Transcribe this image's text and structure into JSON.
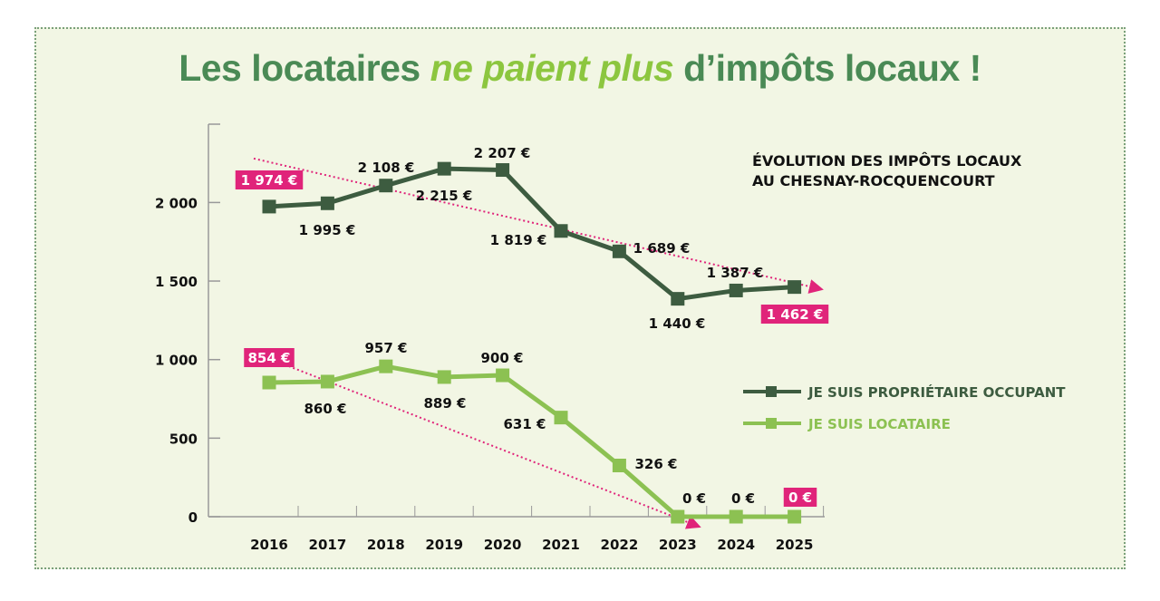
{
  "title": {
    "part1": "Les locataires ",
    "emphasis": "ne paient plus",
    "part2": " d’impôts locaux !"
  },
  "chart_data": {
    "type": "line",
    "title": "Les locataires ne paient plus d’impôts locaux !",
    "subtitle": [
      "ÉVOLUTION DES IMPÔTS LOCAUX",
      "AU CHESNAY-ROCQUENCOURT"
    ],
    "categories": [
      "2016",
      "2017",
      "2018",
      "2019",
      "2020",
      "2021",
      "2022",
      "2023",
      "2024",
      "2025"
    ],
    "yticks": [
      {
        "value": 0,
        "label": "0"
      },
      {
        "value": 500,
        "label": "500"
      },
      {
        "value": 1000,
        "label": "1 000"
      },
      {
        "value": 1500,
        "label": "1 500"
      },
      {
        "value": 2000,
        "label": "2 000"
      }
    ],
    "ylim": [
      0,
      2500
    ],
    "grid": false,
    "legend_position": "right",
    "series": [
      {
        "name": "JE SUIS PROPRIÉTAIRE OCCUPANT",
        "color": "#3d5c40",
        "values": [
          1974,
          1995,
          2108,
          2215,
          2207,
          1819,
          1689,
          1387,
          1440,
          1462
        ],
        "labels": [
          "1 974 €",
          "1 995 €",
          "2 108 €",
          "2 215 €",
          "2 207 €",
          "1 819 €",
          "1 689 €",
          "1 387 €",
          "1 440 €",
          "1 462 €"
        ],
        "trend": {
          "from": 2280,
          "to": 1450
        }
      },
      {
        "name": "JE SUIS LOCATAIRE",
        "color": "#8cc152",
        "values": [
          854,
          860,
          957,
          889,
          900,
          631,
          326,
          0,
          0,
          0
        ],
        "labels": [
          "854 €",
          "860 €",
          "957 €",
          "889 €",
          "900 €",
          "631 €",
          "326 €",
          "0 €",
          "0 €",
          "0 €"
        ],
        "trend": {
          "from": 1000,
          "to": -60
        }
      }
    ],
    "highlight_color": "#e0247a",
    "highlighted_labels": [
      "first",
      "last"
    ]
  }
}
